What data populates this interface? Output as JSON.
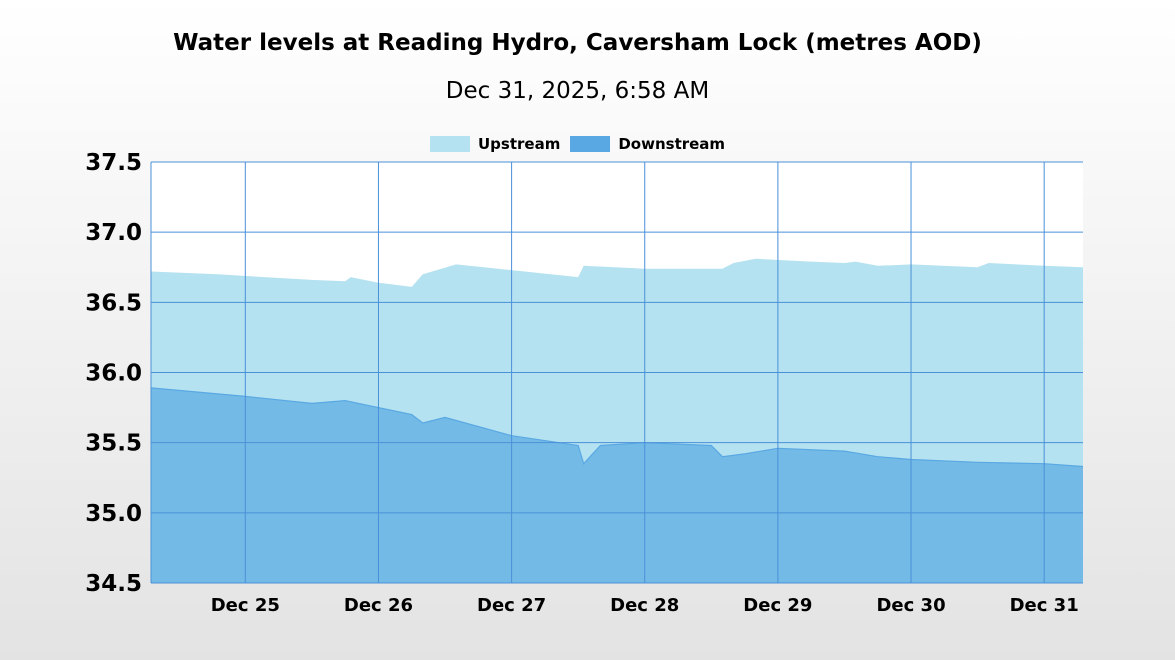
{
  "chart_data": {
    "type": "area",
    "title": "Water levels at Reading Hydro, Caversham Lock (metres AOD)",
    "subtitle": "Dec 31, 2025, 6:58 AM",
    "xlabel": "",
    "ylabel": "",
    "ylim": [
      34.5,
      37.5
    ],
    "xlim": [
      "2025-12-24T07:00",
      "2025-12-31T07:00"
    ],
    "yticks": [
      "37.5",
      "37.0",
      "36.5",
      "36.0",
      "35.5",
      "35.0",
      "34.5"
    ],
    "xticks": [
      {
        "label": "Dec 25",
        "x": "2025-12-25T00:00"
      },
      {
        "label": "Dec 26",
        "x": "2025-12-26T00:00"
      },
      {
        "label": "Dec 27",
        "x": "2025-12-27T00:00"
      },
      {
        "label": "Dec 28",
        "x": "2025-12-28T00:00"
      },
      {
        "label": "Dec 29",
        "x": "2025-12-29T00:00"
      },
      {
        "label": "Dec 30",
        "x": "2025-12-30T00:00"
      },
      {
        "label": "Dec 31",
        "x": "2025-12-31T00:00"
      }
    ],
    "grid": true,
    "legend_position": "top",
    "series": [
      {
        "name": "Upstream",
        "color": "#b5e2f0",
        "points": [
          [
            "2025-12-24T07:00",
            36.72
          ],
          [
            "2025-12-24T19:00",
            36.7
          ],
          [
            "2025-12-25T12:00",
            36.66
          ],
          [
            "2025-12-25T18:00",
            36.65
          ],
          [
            "2025-12-25T19:00",
            36.68
          ],
          [
            "2025-12-26T00:00",
            36.64
          ],
          [
            "2025-12-26T06:00",
            36.61
          ],
          [
            "2025-12-26T08:00",
            36.7
          ],
          [
            "2025-12-26T14:00",
            36.77
          ],
          [
            "2025-12-27T12:00",
            36.68
          ],
          [
            "2025-12-27T13:00",
            36.76
          ],
          [
            "2025-12-28T00:00",
            36.74
          ],
          [
            "2025-12-28T14:00",
            36.74
          ],
          [
            "2025-12-28T16:00",
            36.78
          ],
          [
            "2025-12-28T20:00",
            36.81
          ],
          [
            "2025-12-29T06:00",
            36.79
          ],
          [
            "2025-12-29T12:00",
            36.78
          ],
          [
            "2025-12-29T14:00",
            36.79
          ],
          [
            "2025-12-29T18:00",
            36.76
          ],
          [
            "2025-12-30T00:00",
            36.77
          ],
          [
            "2025-12-30T12:00",
            36.75
          ],
          [
            "2025-12-30T14:00",
            36.78
          ],
          [
            "2025-12-31T00:00",
            36.76
          ],
          [
            "2025-12-31T07:00",
            36.75
          ]
        ]
      },
      {
        "name": "Downstream",
        "color": "#73bbe6",
        "points": [
          [
            "2025-12-24T07:00",
            35.89
          ],
          [
            "2025-12-25T00:00",
            35.83
          ],
          [
            "2025-12-25T12:00",
            35.78
          ],
          [
            "2025-12-25T18:00",
            35.8
          ],
          [
            "2025-12-26T06:00",
            35.7
          ],
          [
            "2025-12-26T08:00",
            35.64
          ],
          [
            "2025-12-26T12:00",
            35.68
          ],
          [
            "2025-12-27T00:00",
            35.55
          ],
          [
            "2025-12-27T12:00",
            35.48
          ],
          [
            "2025-12-27T13:00",
            35.35
          ],
          [
            "2025-12-27T16:00",
            35.48
          ],
          [
            "2025-12-28T00:00",
            35.5
          ],
          [
            "2025-12-28T12:00",
            35.48
          ],
          [
            "2025-12-28T14:00",
            35.4
          ],
          [
            "2025-12-28T18:00",
            35.42
          ],
          [
            "2025-12-29T00:00",
            35.46
          ],
          [
            "2025-12-29T12:00",
            35.44
          ],
          [
            "2025-12-29T18:00",
            35.4
          ],
          [
            "2025-12-30T00:00",
            35.38
          ],
          [
            "2025-12-30T12:00",
            35.36
          ],
          [
            "2025-12-31T00:00",
            35.35
          ],
          [
            "2025-12-31T07:00",
            35.33
          ]
        ]
      }
    ],
    "colors": {
      "gridline": "#4a90d9",
      "axis": "#4a90d9",
      "downstream_line": "#5aa8e3",
      "upstream_legend": "#b5e2f0",
      "downstream_legend": "#5aa8e3"
    }
  }
}
